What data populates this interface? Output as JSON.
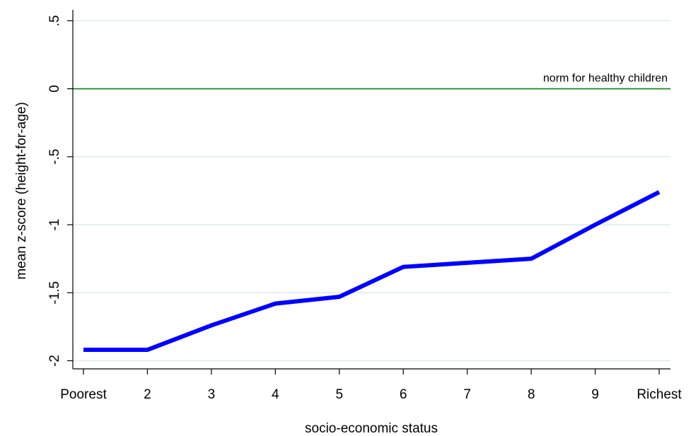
{
  "chart_data": {
    "type": "line",
    "x_label": "socio-economic status",
    "y_label": "mean z-score (height-for-age)",
    "categories": [
      "Poorest",
      "2",
      "3",
      "4",
      "5",
      "6",
      "7",
      "8",
      "9",
      "Richest"
    ],
    "series": [
      {
        "color": "#0000ff",
        "values": [
          -1.92,
          -1.92,
          -1.74,
          -1.58,
          -1.53,
          -1.31,
          -1.28,
          -1.25,
          -1.0,
          -0.76
        ]
      }
    ],
    "ylim": [
      -2.06,
      0.58
    ],
    "yticks": [
      {
        "value": 0.5,
        "label": ".5"
      },
      0,
      {
        "value": -0.5,
        "label": "-.5"
      },
      -1,
      {
        "value": -1.5,
        "label": "-1.5"
      },
      -2
    ],
    "grid": true,
    "reference_line": {
      "value": 0,
      "label": "norm for healthy children",
      "color": "#1a8a1a"
    }
  }
}
